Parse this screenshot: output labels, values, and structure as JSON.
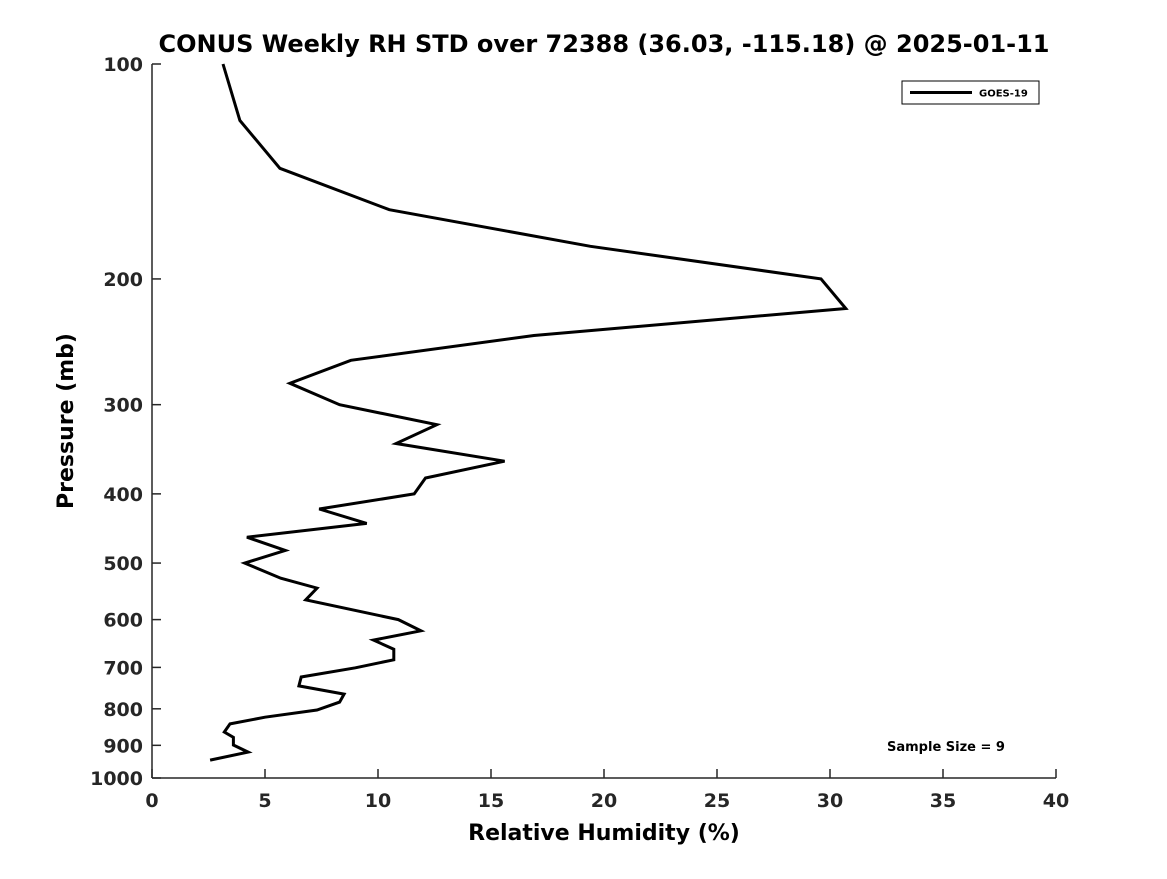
{
  "chart_data": {
    "type": "line",
    "title": "CONUS Weekly RH STD over 72388 (36.03, -115.18) @ 2025-01-11",
    "xlabel": "Relative Humidity (%)",
    "ylabel": "Pressure (mb)",
    "xlim": [
      0,
      40
    ],
    "ylim": [
      100,
      1000
    ],
    "yscale": "log",
    "y_reversed": true,
    "xticks": [
      "0",
      "5",
      "10",
      "15",
      "20",
      "25",
      "30",
      "35",
      "40"
    ],
    "yticks": [
      "100",
      "200",
      "300",
      "400",
      "500",
      "600",
      "700",
      "800",
      "900",
      "1000"
    ],
    "grid": false,
    "legend": {
      "placement": "top-right",
      "entries": [
        "GOES-19"
      ]
    },
    "annotation": "Sample Size = 9",
    "series": [
      {
        "name": "GOES-19",
        "color": "#000000",
        "x": [
          3.14,
          3.89,
          5.66,
          10.5,
          19.4,
          29.6,
          30.7,
          16.9,
          8.8,
          6.1,
          8.3,
          12.6,
          10.8,
          15.6,
          12.1,
          11.6,
          7.4,
          9.5,
          4.2,
          5.9,
          4.1,
          5.7,
          7.3,
          6.8,
          10.9,
          11.9,
          9.8,
          10.7,
          10.7,
          9.0,
          6.6,
          6.5,
          8.5,
          8.3,
          7.3,
          5.0,
          3.45,
          3.2,
          3.6,
          3.6,
          4.25,
          2.57
        ],
        "y": [
          100,
          120,
          140,
          160,
          180,
          200,
          220,
          240,
          260,
          280,
          300,
          320,
          340,
          360,
          380,
          400,
          420,
          440,
          460,
          480,
          500,
          525,
          542,
          563,
          600,
          622,
          641,
          660,
          683,
          701,
          722,
          743,
          763,
          783,
          803,
          822,
          840,
          862,
          877,
          899,
          920,
          944
        ]
      }
    ]
  }
}
